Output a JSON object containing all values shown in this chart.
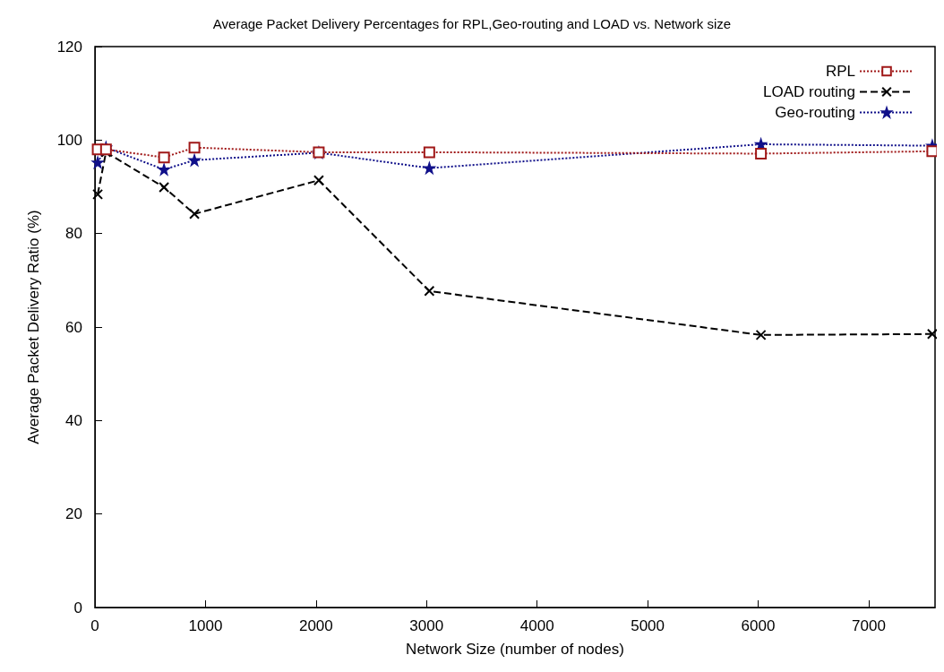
{
  "chart_data": {
    "type": "line",
    "title": "Average Packet Delivery Percentages for RPL,Geo-routing and LOAD vs. Network size",
    "xlabel": "Network Size (number of nodes)",
    "ylabel": "Average Packet Delivery Ratio (%)",
    "xlim": [
      0,
      7600
    ],
    "xticks": [
      0,
      1000,
      2000,
      3000,
      4000,
      5000,
      6000,
      7000
    ],
    "ylim": [
      0,
      120
    ],
    "yticks": [
      0,
      20,
      40,
      60,
      80,
      100,
      120
    ],
    "grid": false,
    "legend": "top right",
    "series": [
      {
        "name": "RPL",
        "color": "#a01818",
        "marker": "square",
        "line_style": "dotted",
        "x": [
          25,
          100,
          625,
          900,
          2025,
          3025,
          6025,
          7575
        ],
        "values": [
          98.0,
          98.0,
          96.3,
          98.4,
          97.4,
          97.4,
          97.1,
          97.6
        ]
      },
      {
        "name": "LOAD routing",
        "color": "#000000",
        "marker": "cross",
        "line_style": "dashed",
        "x": [
          25,
          100,
          625,
          900,
          2025,
          3025,
          6025,
          7575
        ],
        "values": [
          88.4,
          97.4,
          89.9,
          84.2,
          91.4,
          67.7,
          58.3,
          58.5
        ]
      },
      {
        "name": "Geo-routing",
        "color": "#10108a",
        "marker": "star",
        "line_style": "dotted",
        "x": [
          25,
          100,
          625,
          900,
          2025,
          3025,
          6025,
          7575
        ],
        "values": [
          95.2,
          98.4,
          93.7,
          95.7,
          97.3,
          94.0,
          99.1,
          98.8
        ]
      }
    ]
  }
}
